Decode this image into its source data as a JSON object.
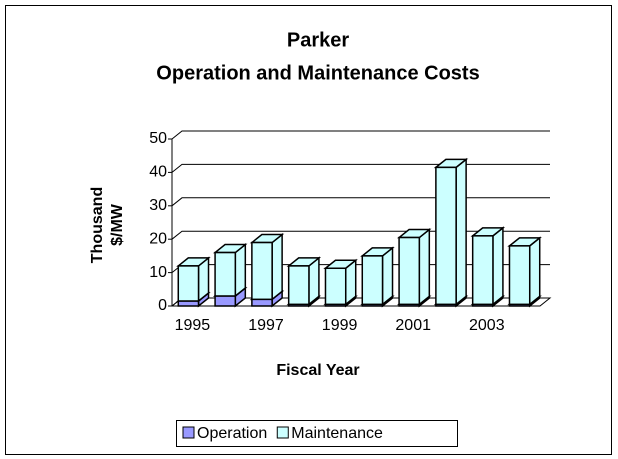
{
  "chart_data": {
    "type": "bar3d_stacked",
    "title_lines": [
      "Parker",
      "Operation and Maintenance Costs"
    ],
    "x_label": "Fiscal Year",
    "y_label_lines": [
      "Thousand",
      "$/MW"
    ],
    "categories": [
      "1995",
      null,
      "1997",
      null,
      "1999",
      null,
      "2001",
      null,
      "2003",
      null
    ],
    "series": [
      {
        "name": "Operation",
        "color": "#9999ff",
        "values": [
          1.5,
          3,
          2,
          0.5,
          0.5,
          0.5,
          0.5,
          0.5,
          0.5,
          0.5
        ]
      },
      {
        "name": "Maintenance",
        "color": "#ccffff",
        "values": [
          10.5,
          13,
          17,
          11.5,
          10.8,
          14.5,
          20,
          41,
          20.5,
          17.5
        ]
      }
    ],
    "ylim": [
      0,
      50
    ],
    "yticks": [
      0,
      10,
      20,
      30,
      40,
      50
    ],
    "grid": true,
    "legend": "bottom"
  }
}
